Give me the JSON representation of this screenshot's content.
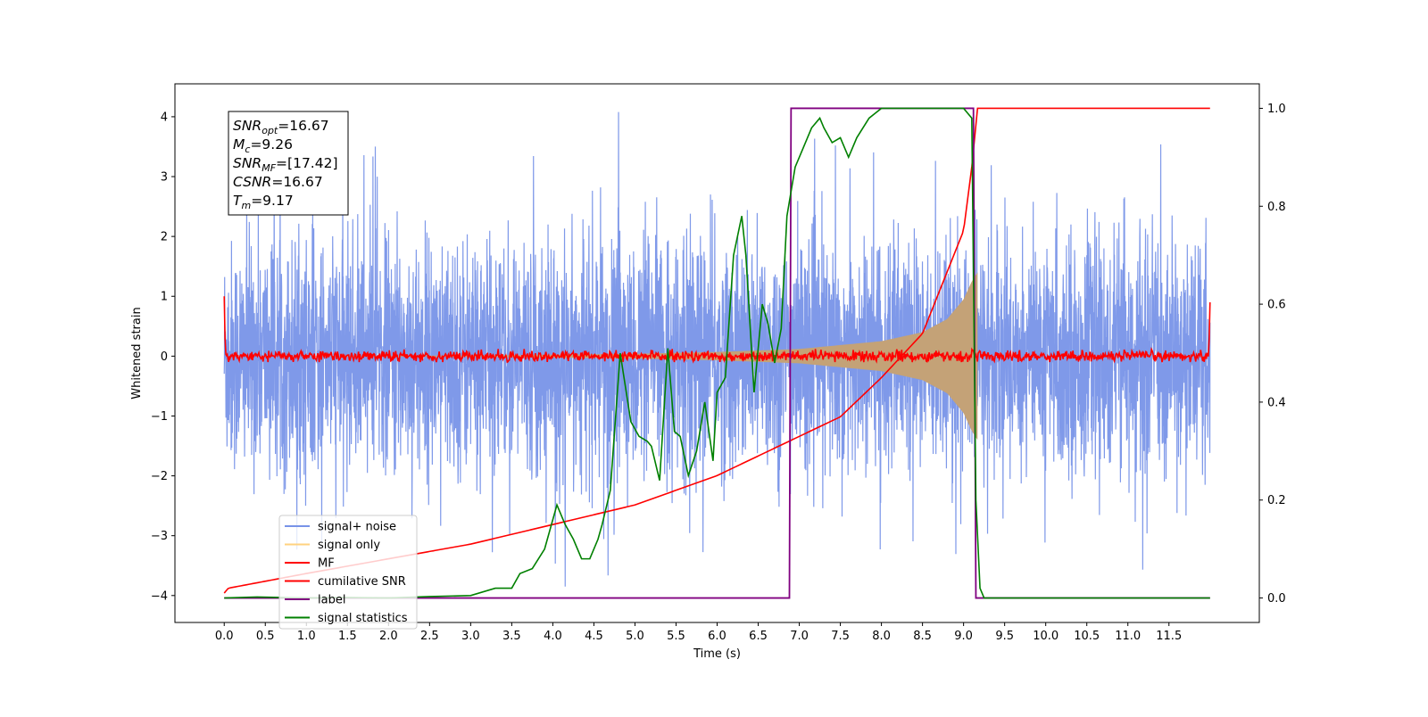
{
  "chart_data": {
    "type": "line",
    "xlabel": "Time (s)",
    "ylabel": "Whitened strain",
    "xlim": [
      -0.6,
      12.6
    ],
    "ylim_left": [
      -4.45,
      4.55
    ],
    "ylim_right": [
      -0.05,
      1.05
    ],
    "x_ticks": [
      0.0,
      0.5,
      1.0,
      1.5,
      2.0,
      2.5,
      3.0,
      3.5,
      4.0,
      4.5,
      5.0,
      5.5,
      6.0,
      6.5,
      7.0,
      7.5,
      8.0,
      8.5,
      9.0,
      9.5,
      10.0,
      10.5,
      11.0,
      11.5
    ],
    "x_tick_labels": [
      "0.0",
      "0.5",
      "1.0",
      "1.5",
      "2.0",
      "2.5",
      "3.0",
      "3.5",
      "4.0",
      "4.5",
      "5.0",
      "5.5",
      "6.0",
      "6.5",
      "7.0",
      "7.5",
      "8.0",
      "8.5",
      "9.0",
      "9.5",
      "10.0",
      "10.5",
      "11.0",
      "11.5"
    ],
    "y_left_ticks": [
      4,
      3,
      2,
      1,
      0,
      -1,
      -2,
      -3,
      -4
    ],
    "y_left_tick_labels": [
      "4",
      "3",
      "2",
      "1",
      "0",
      "−1",
      "−2",
      "−3",
      "−4"
    ],
    "y_right_ticks": [
      1.0,
      0.8,
      0.6,
      0.4,
      0.2,
      0.0
    ],
    "y_right_tick_labels": [
      "1.0",
      "0.8",
      "0.6",
      "0.4",
      "0.2",
      "0.0"
    ],
    "legend": {
      "placement": "lower-left",
      "entries": [
        {
          "label": "signal+ noise",
          "color": "#7893e8"
        },
        {
          "label": "signal only",
          "color": "#ffd27f"
        },
        {
          "label": "MF",
          "color": "#ff0000"
        },
        {
          "label": "cumilative SNR",
          "color": "#ff0000"
        },
        {
          "label": "label",
          "color": "#800080"
        },
        {
          "label": "signal statistics",
          "color": "#008000"
        }
      ]
    },
    "info_box": {
      "placement": "top-left",
      "lines": [
        {
          "base": "SNR",
          "sub": "opt",
          "value": "=16.67"
        },
        {
          "base": "M",
          "sub": "c",
          "value": "=9.26"
        },
        {
          "base": "SNR",
          "sub": "MF",
          "value": "=[17.42]"
        },
        {
          "base": "CSNR",
          "sub": "",
          "value": "=16.67"
        },
        {
          "base": "T",
          "sub": "m",
          "value": "=9.17"
        }
      ]
    },
    "series": [
      {
        "name": "signal+ noise",
        "axis": "left",
        "color": "#7893e8",
        "t_start": 0.0,
        "t_end": 12.0,
        "typical_envelope": [
          -2.0,
          2.3
        ],
        "max_spike": 4.17,
        "min_spike": -3.85
      },
      {
        "name": "signal only",
        "axis": "left",
        "color": "#c4a277",
        "amplitude_points": [
          [
            0.0,
            0.0
          ],
          [
            3.0,
            0.01
          ],
          [
            5.0,
            0.04
          ],
          [
            6.0,
            0.07
          ],
          [
            7.0,
            0.12
          ],
          [
            8.0,
            0.25
          ],
          [
            8.5,
            0.4
          ],
          [
            8.8,
            0.62
          ],
          [
            9.0,
            0.95
          ],
          [
            9.1,
            1.25
          ],
          [
            9.17,
            1.4
          ]
        ],
        "t_merge": 9.17
      },
      {
        "name": "MF",
        "axis": "left",
        "color": "#ff0000",
        "start_value": 1.0,
        "noise_band": [
          -0.1,
          0.12
        ],
        "end_value": 0.9
      },
      {
        "name": "cumilative SNR",
        "axis": "right",
        "color": "#ff0000",
        "points": [
          [
            0.0,
            0.01
          ],
          [
            0.05,
            0.02
          ],
          [
            1.0,
            0.05
          ],
          [
            2.0,
            0.08
          ],
          [
            3.0,
            0.11
          ],
          [
            4.0,
            0.15
          ],
          [
            5.0,
            0.19
          ],
          [
            6.0,
            0.25
          ],
          [
            7.0,
            0.33
          ],
          [
            7.5,
            0.37
          ],
          [
            8.0,
            0.45
          ],
          [
            8.5,
            0.54
          ],
          [
            9.0,
            0.75
          ],
          [
            9.1,
            0.88
          ],
          [
            9.17,
            1.0
          ],
          [
            12.0,
            1.0
          ]
        ]
      },
      {
        "name": "label",
        "axis": "right",
        "color": "#800080",
        "points": [
          [
            0.0,
            0.0
          ],
          [
            6.88,
            0.0
          ],
          [
            6.9,
            1.0
          ],
          [
            9.12,
            1.0
          ],
          [
            9.15,
            0.0
          ],
          [
            12.0,
            0.0
          ]
        ]
      },
      {
        "name": "signal statistics",
        "axis": "right",
        "color": "#008000",
        "points": [
          [
            0.0,
            0.0
          ],
          [
            0.4,
            0.002
          ],
          [
            1.0,
            0.0
          ],
          [
            1.5,
            0.001
          ],
          [
            2.0,
            0.0
          ],
          [
            2.5,
            0.003
          ],
          [
            3.0,
            0.005
          ],
          [
            3.3,
            0.02
          ],
          [
            3.5,
            0.02
          ],
          [
            3.6,
            0.05
          ],
          [
            3.75,
            0.06
          ],
          [
            3.9,
            0.1
          ],
          [
            4.05,
            0.19
          ],
          [
            4.15,
            0.15
          ],
          [
            4.25,
            0.12
          ],
          [
            4.35,
            0.08
          ],
          [
            4.45,
            0.08
          ],
          [
            4.55,
            0.12
          ],
          [
            4.6,
            0.15
          ],
          [
            4.7,
            0.22
          ],
          [
            4.82,
            0.5
          ],
          [
            4.95,
            0.36
          ],
          [
            5.05,
            0.33
          ],
          [
            5.15,
            0.32
          ],
          [
            5.2,
            0.31
          ],
          [
            5.3,
            0.24
          ],
          [
            5.4,
            0.51
          ],
          [
            5.48,
            0.34
          ],
          [
            5.55,
            0.33
          ],
          [
            5.65,
            0.25
          ],
          [
            5.75,
            0.3
          ],
          [
            5.85,
            0.4
          ],
          [
            5.95,
            0.28
          ],
          [
            6.0,
            0.42
          ],
          [
            6.1,
            0.45
          ],
          [
            6.2,
            0.7
          ],
          [
            6.3,
            0.78
          ],
          [
            6.35,
            0.7
          ],
          [
            6.45,
            0.42
          ],
          [
            6.55,
            0.6
          ],
          [
            6.62,
            0.56
          ],
          [
            6.7,
            0.48
          ],
          [
            6.78,
            0.55
          ],
          [
            6.85,
            0.78
          ],
          [
            6.95,
            0.88
          ],
          [
            7.05,
            0.92
          ],
          [
            7.15,
            0.96
          ],
          [
            7.25,
            0.98
          ],
          [
            7.3,
            0.96
          ],
          [
            7.4,
            0.93
          ],
          [
            7.5,
            0.94
          ],
          [
            7.6,
            0.9
          ],
          [
            7.7,
            0.94
          ],
          [
            7.85,
            0.98
          ],
          [
            8.0,
            1.0
          ],
          [
            8.5,
            1.0
          ],
          [
            9.0,
            1.0
          ],
          [
            9.1,
            0.98
          ],
          [
            9.15,
            0.2
          ],
          [
            9.2,
            0.02
          ],
          [
            9.25,
            0.0
          ],
          [
            12.0,
            0.0
          ]
        ]
      }
    ]
  }
}
